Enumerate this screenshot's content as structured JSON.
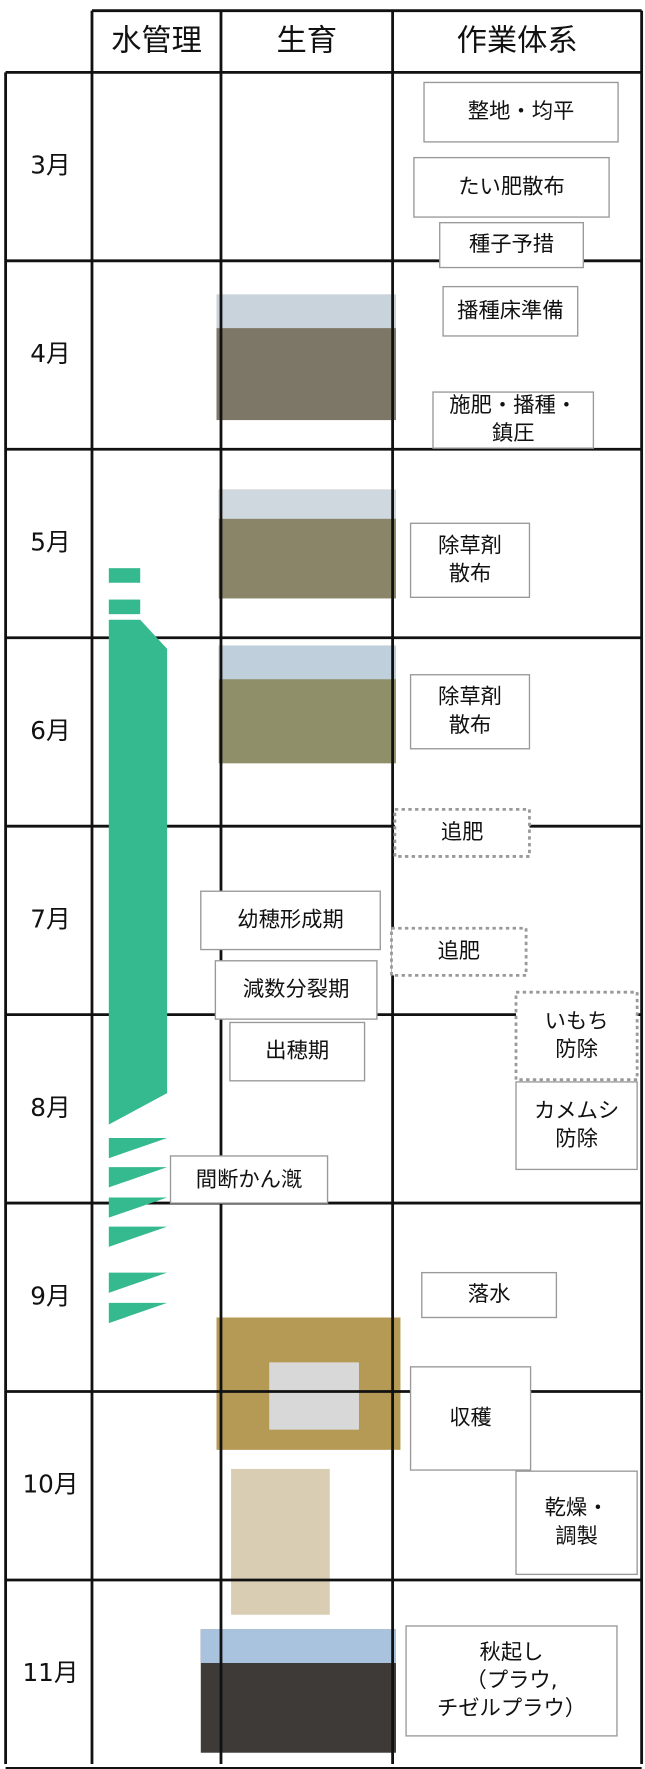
{
  "header": {
    "columns": [
      "水管理",
      "生育",
      "作業体系"
    ]
  },
  "months": [
    "3月",
    "4月",
    "5月",
    "6月",
    "7月",
    "8月",
    "9月",
    "10月",
    "11月"
  ],
  "growth_stages": [
    "幼穂形成期",
    "減数分裂期",
    "出穂期"
  ],
  "water_label": "間断かん漑",
  "tasks": [
    [
      "整地・均平"
    ],
    [
      "たい肥散布"
    ],
    [
      "種子予措"
    ],
    [
      "播種床準備"
    ],
    [
      "施肥・播種・",
      "鎮圧"
    ],
    [
      "除草剤",
      "散布"
    ],
    [
      "除草剤",
      "散布"
    ],
    [
      "追肥"
    ],
    [
      "追肥"
    ],
    [
      "いもち",
      "防除"
    ],
    [
      "カメムシ",
      "防除"
    ],
    [
      "落水"
    ],
    [
      "収穫"
    ],
    [
      "乾燥・",
      "調製"
    ],
    [
      "秋起し",
      "（プラウ,",
      "チゼルプラウ）"
    ]
  ]
}
